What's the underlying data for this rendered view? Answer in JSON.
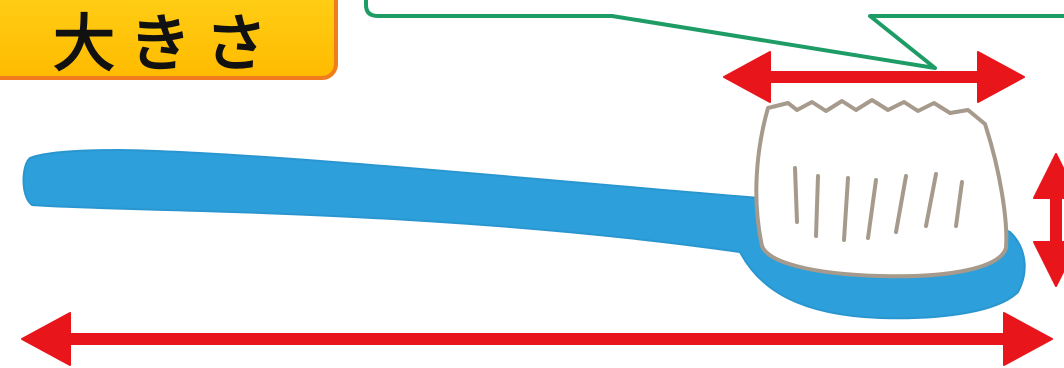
{
  "label": {
    "title": "大きさ"
  },
  "colors": {
    "title_fill": "#ffc200",
    "title_border": "#f07c1e",
    "callout_border": "#1e9c66",
    "arrow": "#e8151b",
    "brush_handle": "#2d9fdb",
    "bristle_outline": "#a69a8c",
    "bristle_fill": "#ffffff"
  },
  "icons": [
    "toothbrush-icon",
    "double-arrow-icon",
    "speech-bubble-callout"
  ]
}
